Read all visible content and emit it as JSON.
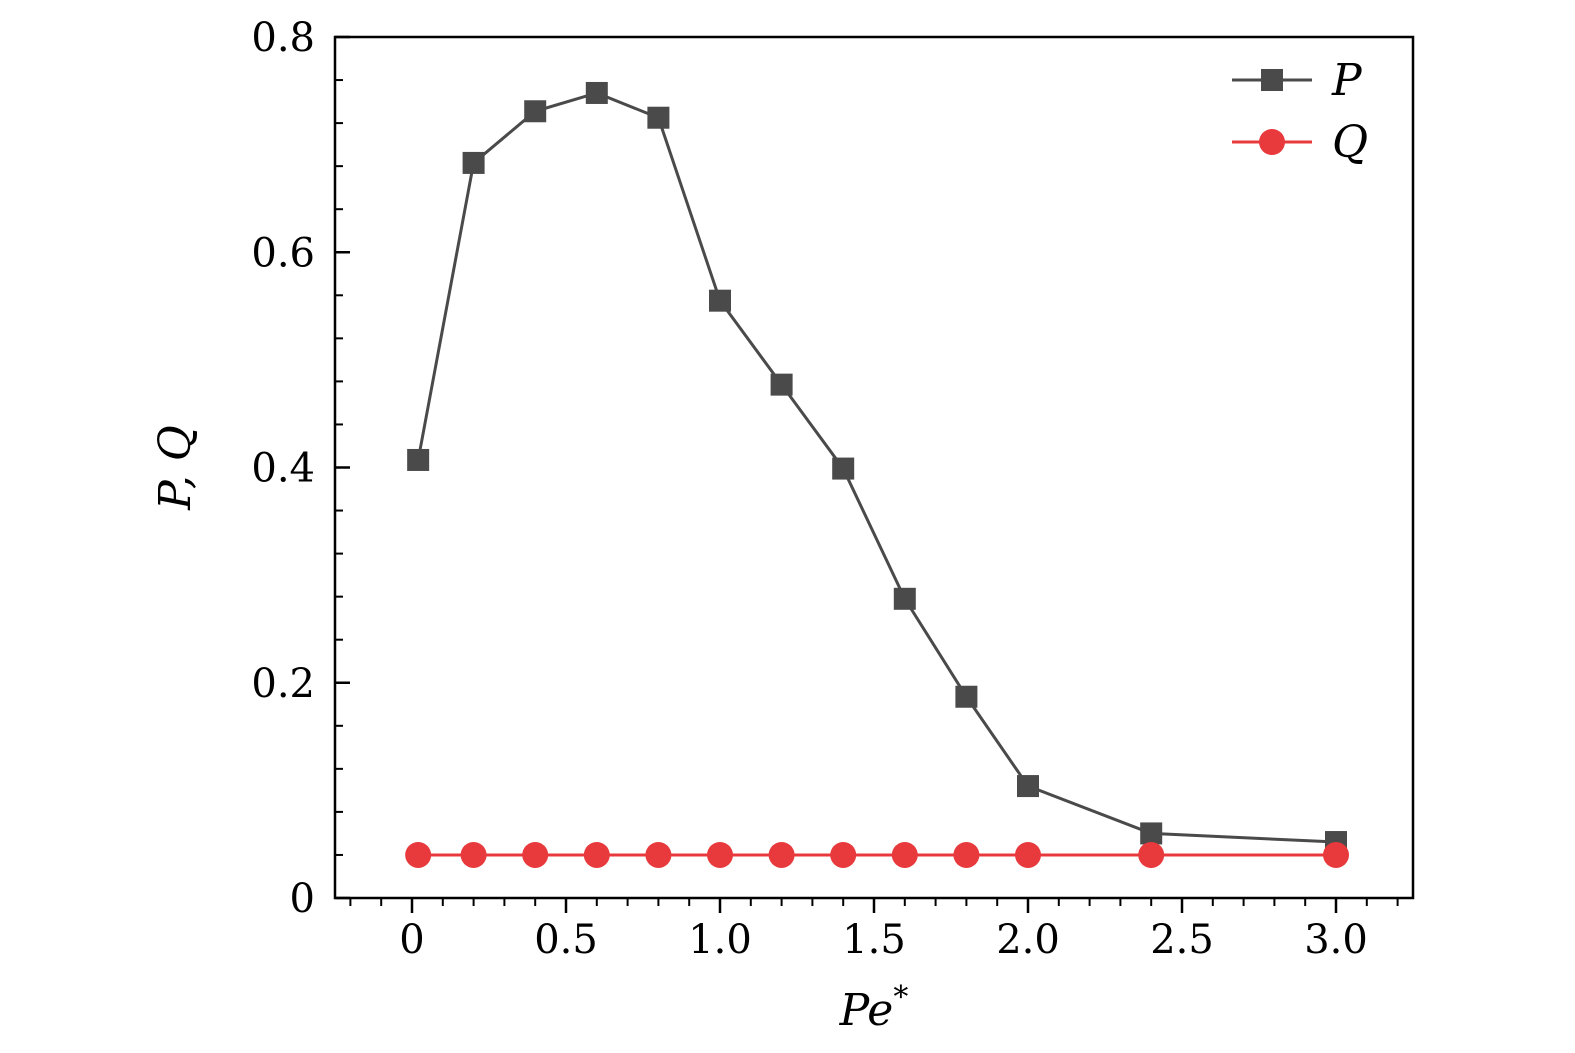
{
  "chart_data": {
    "type": "line",
    "xlabel": "Pe*",
    "xlabel_base": "Pe",
    "xlabel_sup": "*",
    "ylabel": "P, Q",
    "xlim": [
      -0.25,
      3.25
    ],
    "ylim": [
      0,
      0.8
    ],
    "x_ticks": [
      {
        "value": 0,
        "label": "0"
      },
      {
        "value": 0.5,
        "label": "0.5"
      },
      {
        "value": 1.0,
        "label": "1.0"
      },
      {
        "value": 1.5,
        "label": "1.5"
      },
      {
        "value": 2.0,
        "label": "2.0"
      },
      {
        "value": 2.5,
        "label": "2.5"
      },
      {
        "value": 3.0,
        "label": "3.0"
      }
    ],
    "y_ticks": [
      {
        "value": 0,
        "label": "0"
      },
      {
        "value": 0.2,
        "label": "0.2"
      },
      {
        "value": 0.4,
        "label": "0.4"
      },
      {
        "value": 0.6,
        "label": "0.6"
      },
      {
        "value": 0.8,
        "label": "0.8"
      }
    ],
    "x_minor_step": 0.1,
    "y_minor_step": 0.04,
    "grid": false,
    "legend_position": "top-right",
    "series": [
      {
        "name": "P",
        "marker": "square",
        "color": "#4a4a4a",
        "x": [
          0.02,
          0.2,
          0.4,
          0.6,
          0.8,
          1.0,
          1.2,
          1.4,
          1.6,
          1.8,
          2.0,
          2.4,
          3.0
        ],
        "y": [
          0.407,
          0.683,
          0.731,
          0.748,
          0.725,
          0.555,
          0.477,
          0.399,
          0.278,
          0.187,
          0.104,
          0.06,
          0.052
        ]
      },
      {
        "name": "Q",
        "marker": "circle",
        "color": "#e8393c",
        "x": [
          0.02,
          0.2,
          0.4,
          0.6,
          0.8,
          1.0,
          1.2,
          1.4,
          1.6,
          1.8,
          2.0,
          2.4,
          3.0
        ],
        "y": [
          0.04,
          0.04,
          0.04,
          0.04,
          0.04,
          0.04,
          0.04,
          0.04,
          0.04,
          0.04,
          0.04,
          0.04,
          0.04
        ]
      }
    ]
  }
}
